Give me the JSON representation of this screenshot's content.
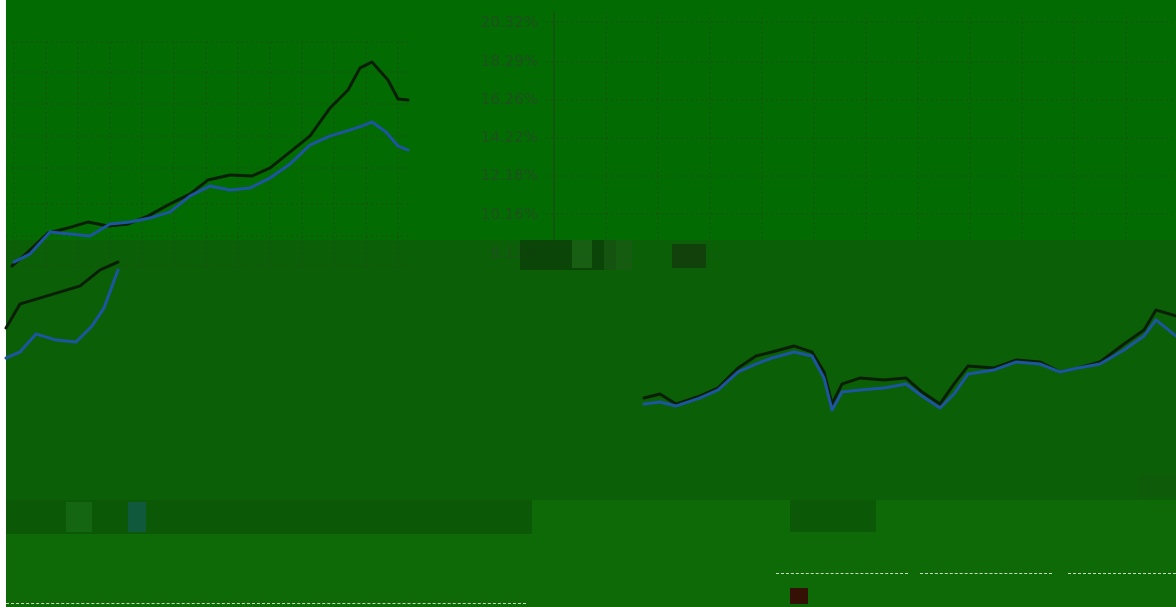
{
  "left_chart": {
    "series_black": [
      [
        12,
        266
      ],
      [
        28,
        252
      ],
      [
        48,
        233
      ],
      [
        68,
        228
      ],
      [
        88,
        222
      ],
      [
        108,
        226
      ],
      [
        128,
        224
      ],
      [
        148,
        216
      ],
      [
        168,
        205
      ],
      [
        190,
        194
      ],
      [
        208,
        180
      ],
      [
        230,
        175
      ],
      [
        252,
        176
      ],
      [
        270,
        168
      ],
      [
        290,
        152
      ],
      [
        310,
        136
      ],
      [
        330,
        108
      ],
      [
        348,
        90
      ],
      [
        360,
        68
      ],
      [
        372,
        62
      ],
      [
        388,
        80
      ],
      [
        398,
        99
      ],
      [
        408,
        100
      ]
    ],
    "series_blue": [
      [
        14,
        262
      ],
      [
        30,
        254
      ],
      [
        50,
        232
      ],
      [
        70,
        234
      ],
      [
        90,
        236
      ],
      [
        110,
        224
      ],
      [
        130,
        222
      ],
      [
        150,
        218
      ],
      [
        170,
        212
      ],
      [
        190,
        196
      ],
      [
        210,
        186
      ],
      [
        230,
        190
      ],
      [
        250,
        188
      ],
      [
        270,
        178
      ],
      [
        290,
        164
      ],
      [
        310,
        145
      ],
      [
        330,
        136
      ],
      [
        350,
        130
      ],
      [
        362,
        126
      ],
      [
        372,
        122
      ],
      [
        386,
        132
      ],
      [
        398,
        146
      ],
      [
        408,
        150
      ]
    ],
    "lower_black": [
      [
        6,
        328
      ],
      [
        20,
        304
      ],
      [
        40,
        298
      ],
      [
        60,
        292
      ],
      [
        80,
        286
      ],
      [
        100,
        270
      ],
      [
        118,
        262
      ]
    ],
    "lower_blue": [
      [
        6,
        358
      ],
      [
        20,
        352
      ],
      [
        36,
        334
      ],
      [
        56,
        340
      ],
      [
        76,
        342
      ],
      [
        92,
        326
      ],
      [
        104,
        308
      ],
      [
        118,
        270
      ]
    ]
  },
  "right_chart": {
    "y_ticks": [
      "20.32%",
      "18.29%",
      "16.26%",
      "14.22%",
      "12.18%",
      "10.16%",
      "8.13%"
    ],
    "series_black": [
      [
        644,
        398
      ],
      [
        660,
        394
      ],
      [
        676,
        404
      ],
      [
        700,
        396
      ],
      [
        718,
        388
      ],
      [
        738,
        368
      ],
      [
        756,
        356
      ],
      [
        772,
        352
      ],
      [
        794,
        346
      ],
      [
        812,
        352
      ],
      [
        824,
        372
      ],
      [
        832,
        404
      ],
      [
        842,
        384
      ],
      [
        860,
        378
      ],
      [
        884,
        380
      ],
      [
        906,
        378
      ],
      [
        922,
        392
      ],
      [
        940,
        404
      ],
      [
        954,
        384
      ],
      [
        968,
        366
      ],
      [
        994,
        368
      ],
      [
        1016,
        360
      ],
      [
        1040,
        362
      ],
      [
        1060,
        372
      ],
      [
        1078,
        368
      ],
      [
        1100,
        362
      ],
      [
        1124,
        344
      ],
      [
        1144,
        330
      ],
      [
        1156,
        310
      ],
      [
        1176,
        316
      ]
    ],
    "series_blue": [
      [
        644,
        404
      ],
      [
        660,
        402
      ],
      [
        676,
        406
      ],
      [
        700,
        398
      ],
      [
        718,
        390
      ],
      [
        738,
        372
      ],
      [
        756,
        364
      ],
      [
        772,
        358
      ],
      [
        794,
        352
      ],
      [
        812,
        356
      ],
      [
        824,
        378
      ],
      [
        832,
        410
      ],
      [
        842,
        392
      ],
      [
        860,
        390
      ],
      [
        884,
        388
      ],
      [
        906,
        384
      ],
      [
        922,
        396
      ],
      [
        940,
        408
      ],
      [
        954,
        394
      ],
      [
        968,
        374
      ],
      [
        994,
        370
      ],
      [
        1016,
        362
      ],
      [
        1040,
        364
      ],
      [
        1060,
        372
      ],
      [
        1078,
        368
      ],
      [
        1100,
        364
      ],
      [
        1124,
        350
      ],
      [
        1144,
        336
      ],
      [
        1156,
        320
      ],
      [
        1176,
        336
      ]
    ]
  },
  "colors": {
    "black_line": "#0b1f06",
    "blue_line": "#1c55a0",
    "grid": "#1b4f12",
    "tick_text": "#1f4f1f"
  }
}
